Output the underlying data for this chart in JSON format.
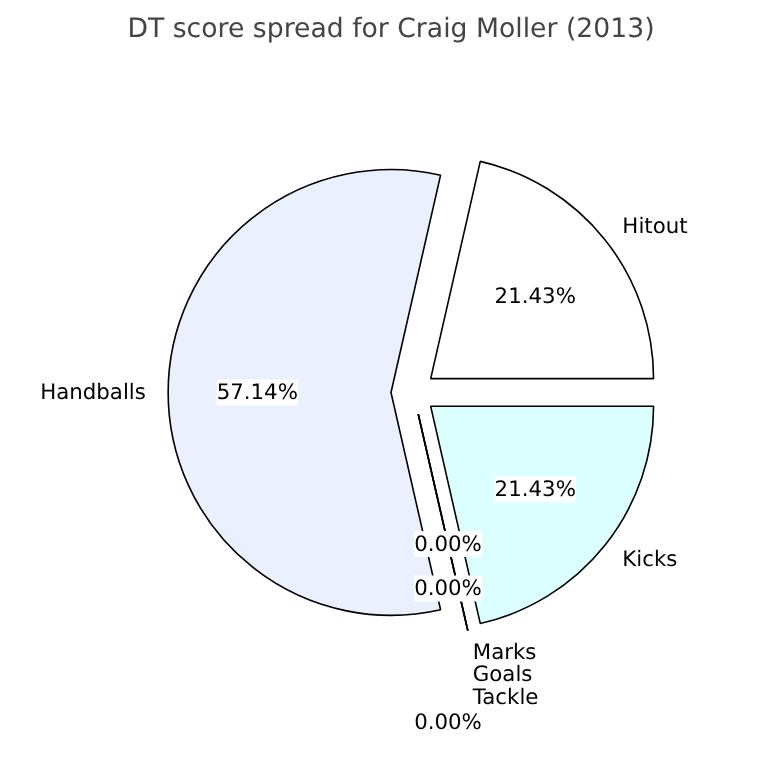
{
  "chart_data": {
    "type": "pie",
    "title": "DT score spread for Craig Moller (2013)",
    "categories": [
      "Hitout",
      "Handballs",
      "Marks",
      "Goals",
      "Tackle",
      "Kicks"
    ],
    "values": [
      21.43,
      57.14,
      0,
      0,
      0,
      21.43
    ],
    "colors": [
      "#ffffff",
      "#ebf0fe",
      "#ffffff",
      "#ffffff",
      "#ffffff",
      "#dcffff"
    ],
    "value_labels": [
      "21.43%",
      "57.14%",
      "0.00%",
      "0.00%",
      "0.00%",
      "21.43%"
    ]
  }
}
